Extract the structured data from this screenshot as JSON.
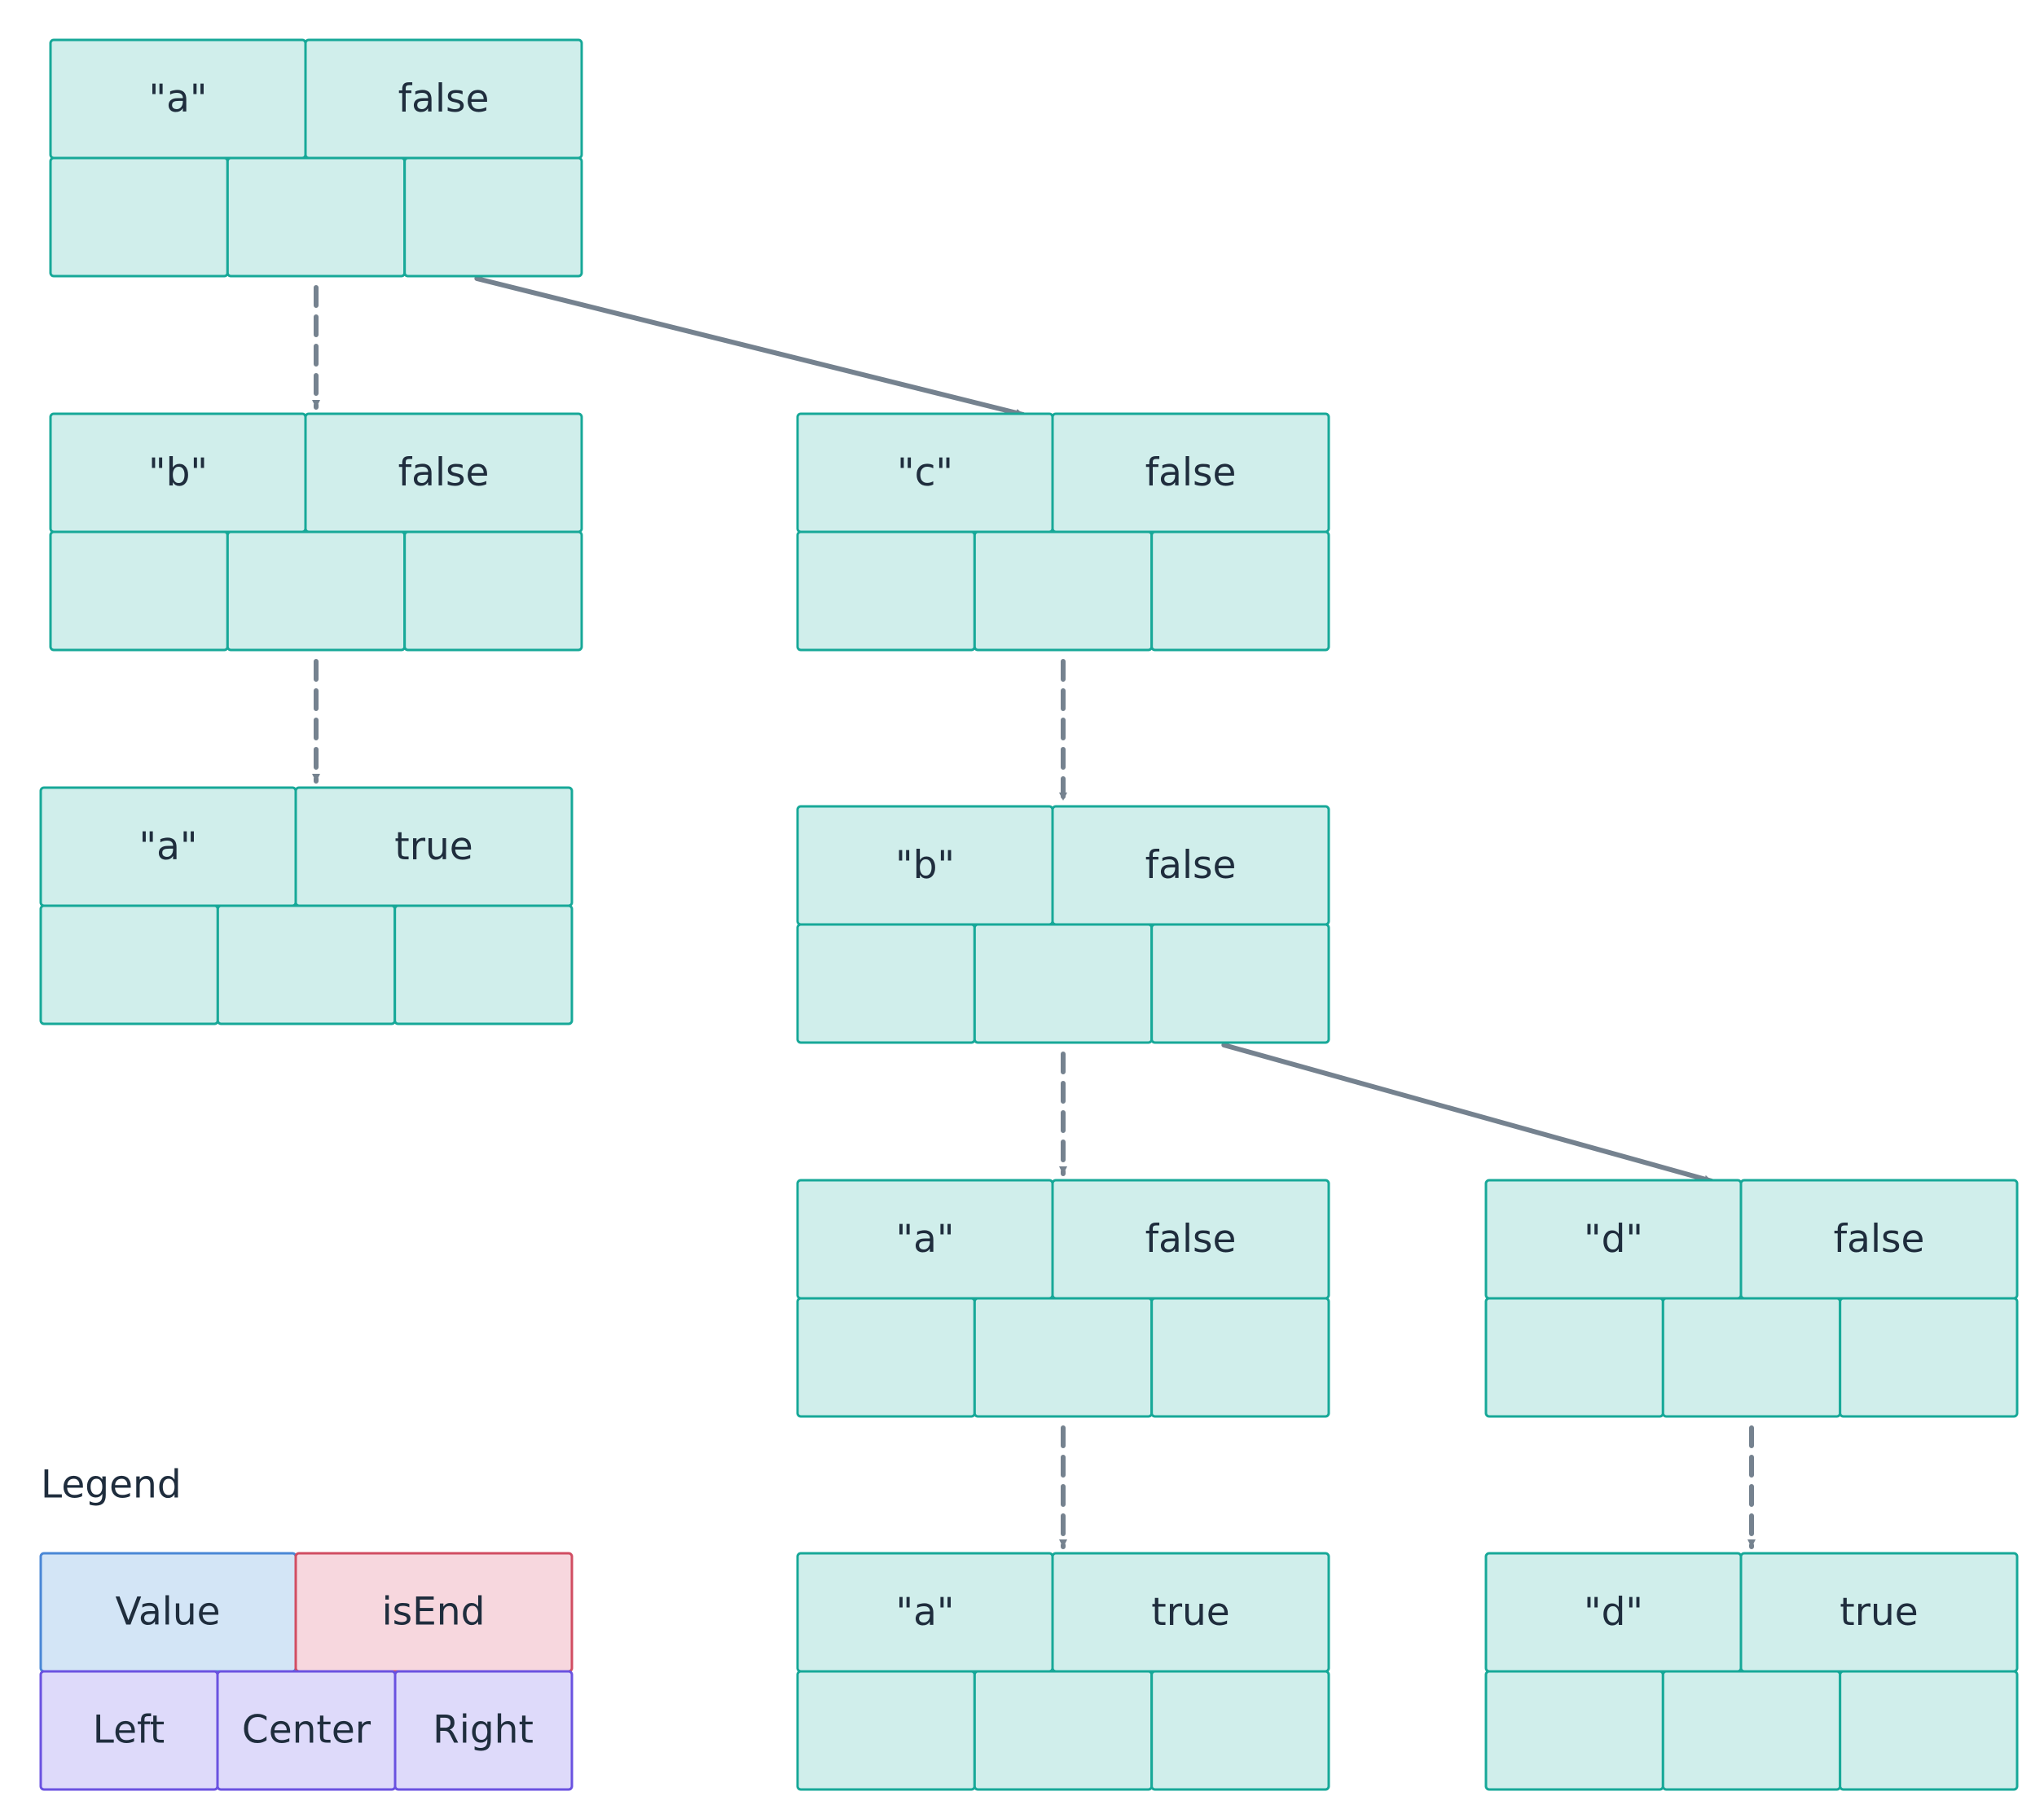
{
  "nodes": [
    {
      "value": "\"a\"",
      "is_end": "false"
    },
    {
      "value": "\"b\"",
      "is_end": "false"
    },
    {
      "value": "\"c\"",
      "is_end": "false"
    },
    {
      "value": "\"a\"",
      "is_end": "true"
    },
    {
      "value": "\"b\"",
      "is_end": "false"
    },
    {
      "value": "\"a\"",
      "is_end": "false"
    },
    {
      "value": "\"d\"",
      "is_end": "false"
    },
    {
      "value": "\"a\"",
      "is_end": "true"
    },
    {
      "value": "\"d\"",
      "is_end": "true"
    }
  ],
  "edges": [
    {
      "from": 0,
      "to": 1,
      "kind": "center"
    },
    {
      "from": 0,
      "to": 2,
      "kind": "right"
    },
    {
      "from": 1,
      "to": 3,
      "kind": "center"
    },
    {
      "from": 2,
      "to": 4,
      "kind": "center"
    },
    {
      "from": 4,
      "to": 5,
      "kind": "center"
    },
    {
      "from": 4,
      "to": 6,
      "kind": "right"
    },
    {
      "from": 5,
      "to": 7,
      "kind": "center"
    },
    {
      "from": 6,
      "to": 8,
      "kind": "center"
    }
  ],
  "legend": {
    "title": "Legend",
    "value": "Value",
    "is_end": "isEnd",
    "left": "Left",
    "center": "Center",
    "right": "Right"
  },
  "colors": {
    "node_fill": "#d0eeeb",
    "node_stroke": "#17a898",
    "edge": "#75828f",
    "text": "#1f2d3d",
    "legend_value_fill": "#d3e5f6",
    "legend_value_stroke": "#4a87d6",
    "legend_isend_fill": "#f7d7de",
    "legend_isend_stroke": "#d14d62",
    "legend_children_fill": "#dedafa",
    "legend_children_stroke": "#6a52e0"
  }
}
